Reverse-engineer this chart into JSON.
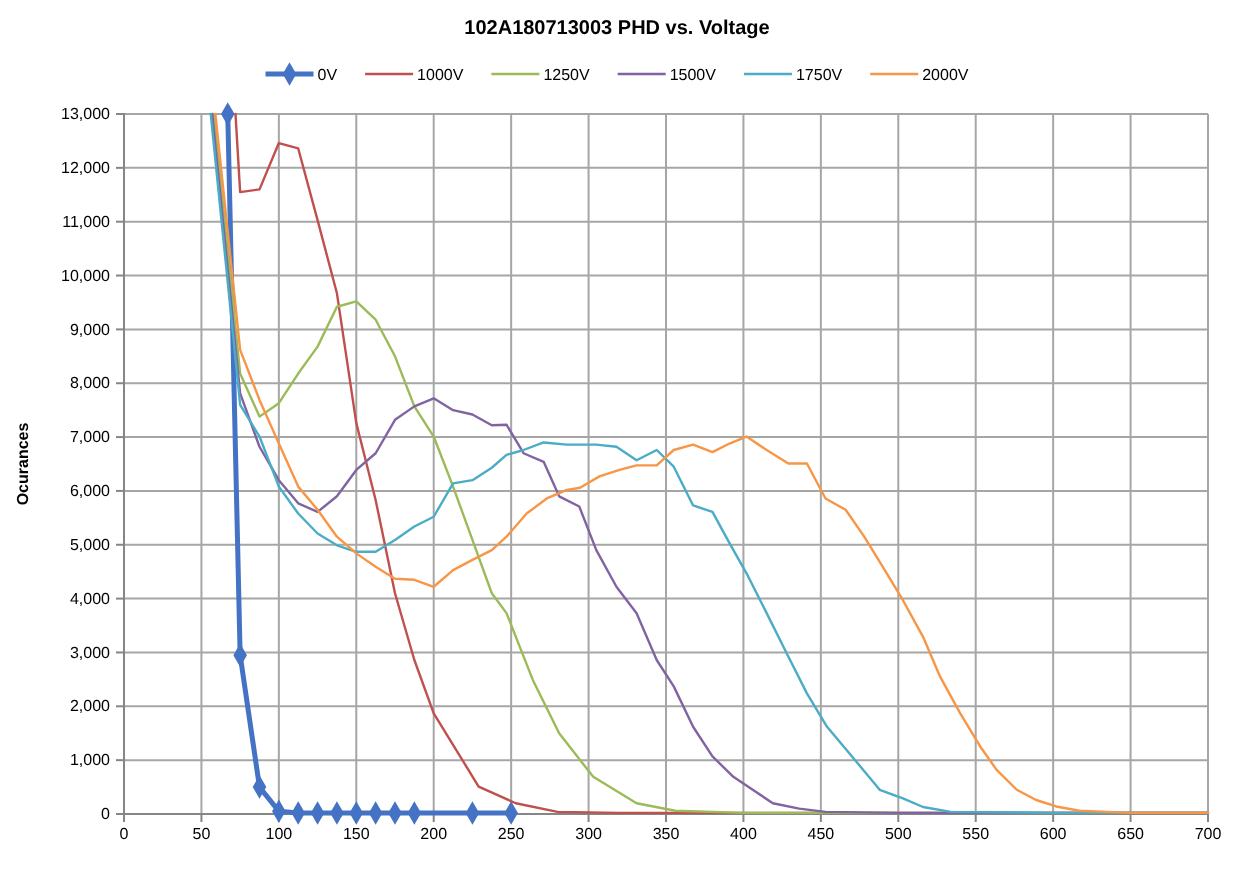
{
  "chart_data": {
    "type": "line",
    "title": "102A180713003 PHD vs. Voltage",
    "ylabel": "Ocurances",
    "xlim": [
      0,
      700
    ],
    "xticks": [
      0,
      50,
      100,
      150,
      200,
      250,
      300,
      350,
      400,
      450,
      500,
      550,
      600,
      650,
      700
    ],
    "ylim": [
      0,
      13000
    ],
    "yticks": [
      {
        "value": 0,
        "label": "0"
      },
      {
        "value": 1000,
        "label": "1,000"
      },
      {
        "value": 2000,
        "label": "2,000"
      },
      {
        "value": 3000,
        "label": "3,000"
      },
      {
        "value": 4000,
        "label": "4,000"
      },
      {
        "value": 5000,
        "label": "5,000"
      },
      {
        "value": 6000,
        "label": "6,000"
      },
      {
        "value": 7000,
        "label": "7,000"
      },
      {
        "value": 8000,
        "label": "8,000"
      },
      {
        "value": 9000,
        "label": "9,000"
      },
      {
        "value": 10000,
        "label": "10,000"
      },
      {
        "value": 11000,
        "label": "11,000"
      },
      {
        "value": 12000,
        "label": "12,000"
      },
      {
        "value": 13000,
        "label": "13,000"
      }
    ],
    "grid": true,
    "legend": "top",
    "line_style": "solid",
    "series": [
      {
        "name": "0V",
        "color": "#4472c4",
        "marker": "diamond",
        "x": [
          67,
          75,
          87.5,
          100,
          112.5,
          125,
          137.5,
          150,
          162.5,
          175,
          187.5,
          225,
          250
        ],
        "values": [
          13000,
          2950,
          500,
          50,
          20,
          20,
          20,
          20,
          20,
          20,
          20,
          20,
          20
        ]
      },
      {
        "name": "1000V",
        "color": "#c0504d",
        "marker": "none",
        "x": [
          72,
          75,
          87.5,
          100,
          112.5,
          125,
          137.5,
          150,
          162.5,
          175,
          187.5,
          200,
          229,
          253,
          280,
          320,
          400,
          500,
          600,
          700
        ],
        "values": [
          13000,
          11550,
          11600,
          12460,
          12360,
          11030,
          9670,
          7260,
          5830,
          4100,
          2860,
          1870,
          510,
          200,
          40,
          20,
          20,
          20,
          20,
          20
        ]
      },
      {
        "name": "1250V",
        "color": "#9bbb59",
        "marker": "none",
        "x": [
          58,
          75,
          87.5,
          100,
          112.5,
          125,
          137.5,
          150,
          162.5,
          175,
          187.5,
          200,
          212.5,
          225,
          237.5,
          247,
          264,
          281,
          303,
          331,
          356,
          400,
          500,
          600,
          700
        ],
        "values": [
          13000,
          8180,
          7380,
          7630,
          8180,
          8680,
          9420,
          9520,
          9180,
          8500,
          7570,
          7010,
          6080,
          5090,
          4100,
          3730,
          2490,
          1500,
          690,
          200,
          60,
          20,
          20,
          20,
          20
        ]
      },
      {
        "name": "1500V",
        "color": "#8064a2",
        "marker": "none",
        "x": [
          57,
          75,
          87.5,
          100,
          112.5,
          125,
          137.5,
          150,
          162.5,
          175,
          187.5,
          200,
          212.5,
          225,
          237.5,
          247,
          258,
          271,
          281,
          294,
          305,
          318,
          331,
          344,
          355,
          367.5,
          380,
          393.5,
          406,
          419,
          436,
          453,
          500,
          600,
          700
        ],
        "values": [
          13000,
          7810,
          6820,
          6200,
          5770,
          5610,
          5900,
          6390,
          6700,
          7320,
          7570,
          7720,
          7500,
          7420,
          7220,
          7230,
          6700,
          6540,
          5900,
          5710,
          4900,
          4220,
          3730,
          2860,
          2370,
          1620,
          1070,
          690,
          450,
          200,
          100,
          40,
          20,
          20,
          20
        ]
      },
      {
        "name": "1750V",
        "color": "#4bacc6",
        "marker": "none",
        "x": [
          56,
          75,
          87.5,
          100,
          112.5,
          125,
          137.5,
          150,
          162.5,
          175,
          187.5,
          200,
          212.5,
          225,
          237.5,
          247,
          258,
          271,
          286,
          305,
          318,
          331,
          344,
          355,
          367.5,
          380,
          391,
          402,
          415,
          428,
          441,
          454,
          466.6,
          488,
          503,
          516,
          534,
          600,
          700
        ],
        "values": [
          13000,
          7600,
          7010,
          6080,
          5580,
          5210,
          4990,
          4870,
          4870,
          5090,
          5340,
          5520,
          6140,
          6200,
          6430,
          6670,
          6760,
          6900,
          6860,
          6860,
          6820,
          6570,
          6760,
          6450,
          5730,
          5610,
          5030,
          4470,
          3730,
          2980,
          2240,
          1620,
          1190,
          450,
          290,
          130,
          40,
          20,
          20
        ]
      },
      {
        "name": "2000V",
        "color": "#f79646",
        "marker": "none",
        "x": [
          59,
          75,
          87.5,
          100,
          112.5,
          125,
          137.5,
          150,
          162.5,
          175,
          187.5,
          200,
          212.5,
          225,
          237.5,
          247,
          260,
          273,
          286,
          294.5,
          307,
          320,
          331,
          344,
          355,
          367.5,
          380,
          391,
          402,
          415,
          429,
          441,
          453,
          466,
          478,
          490,
          503,
          516,
          527,
          540,
          553,
          563.5,
          576.5,
          589,
          602,
          617,
          650,
          700
        ],
        "values": [
          13000,
          8620,
          7690,
          6880,
          6080,
          5650,
          5150,
          4840,
          4590,
          4370,
          4350,
          4220,
          4530,
          4720,
          4900,
          5150,
          5580,
          5860,
          6020,
          6060,
          6270,
          6390,
          6475,
          6475,
          6760,
          6860,
          6720,
          6880,
          7010,
          6760,
          6510,
          6510,
          5860,
          5650,
          5150,
          4590,
          3970,
          3290,
          2550,
          1870,
          1250,
          820,
          450,
          260,
          140,
          60,
          20,
          20
        ]
      }
    ]
  }
}
